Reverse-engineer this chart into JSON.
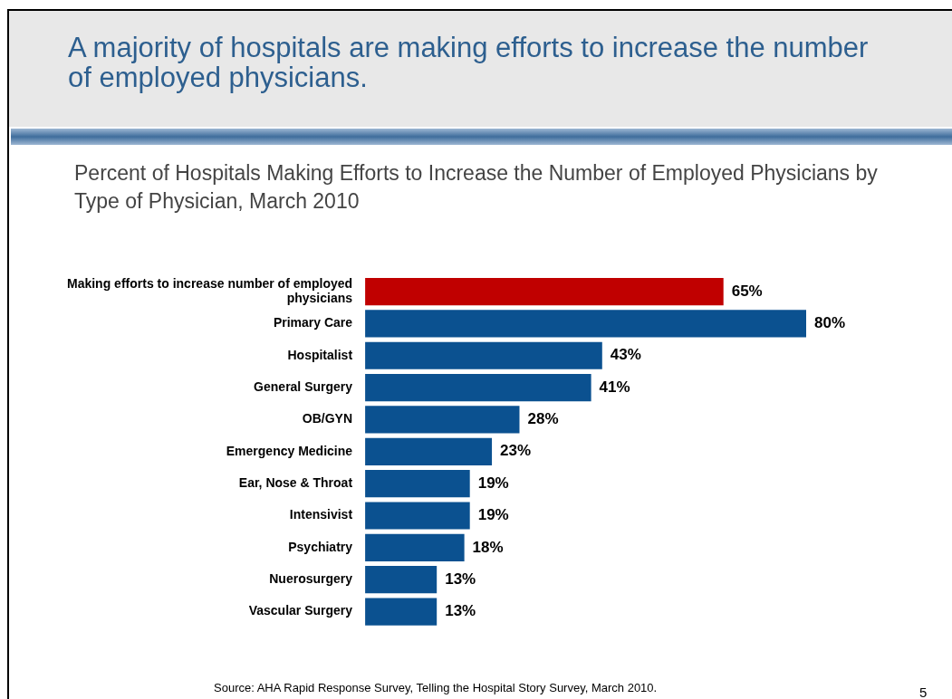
{
  "chart_data": {
    "type": "bar",
    "orientation": "horizontal",
    "title": "A majority of hospitals are making efforts to increase the number of employed physicians.",
    "subtitle": "Percent of Hospitals Making Efforts to Increase the Number of Employed Physicians by Type of Physician, March 2010",
    "categories": [
      "Making efforts to increase number of employed physicians",
      "Primary Care",
      "Hospitalist",
      "General Surgery",
      "OB/GYN",
      "Emergency Medicine",
      "Ear, Nose & Throat",
      "Intensivist",
      "Psychiatry",
      "Nuerosurgery",
      "Vascular Surgery"
    ],
    "values": [
      65,
      80,
      43,
      41,
      28,
      23,
      19,
      19,
      18,
      13,
      13
    ],
    "value_labels": [
      "65%",
      "80%",
      "43%",
      "41%",
      "28%",
      "23%",
      "19%",
      "19%",
      "18%",
      "13%",
      "13%"
    ],
    "colors": [
      "#c00000",
      "#0b5190",
      "#0b5190",
      "#0b5190",
      "#0b5190",
      "#0b5190",
      "#0b5190",
      "#0b5190",
      "#0b5190",
      "#0b5190",
      "#0b5190"
    ],
    "annotations": [
      "Source:  AHA Rapid Response Survey, Telling the Hospital Story Survey, March 2010.",
      "5"
    ],
    "grid": false,
    "legend": false
  }
}
